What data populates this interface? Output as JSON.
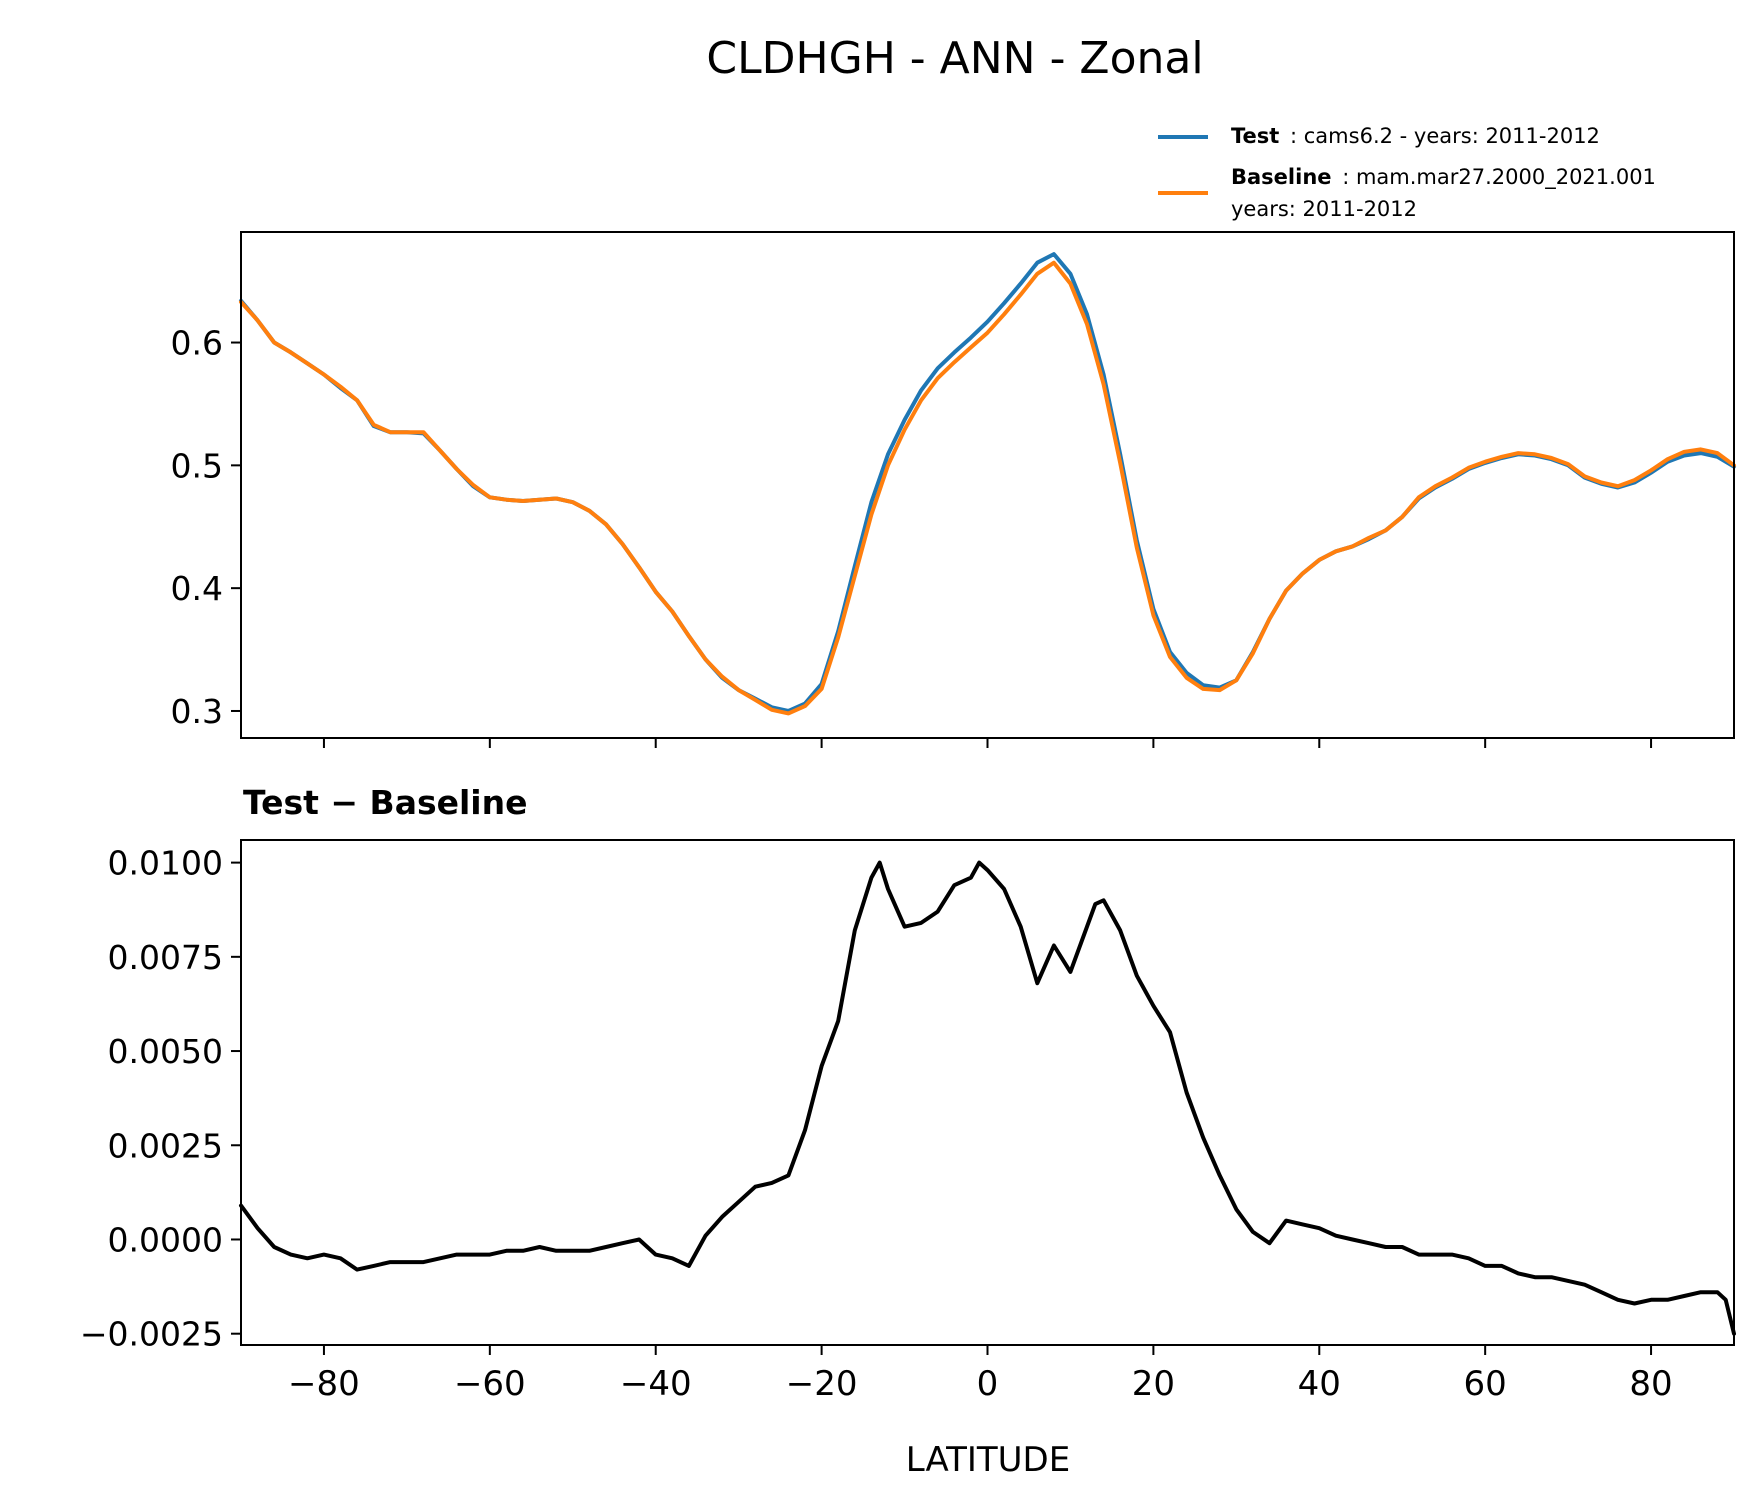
{
  "figure_title": "CLDHGH - ANN - Zonal",
  "legend": {
    "test_label": "Test",
    "test_desc": ": cams6.2 - years: 2011-2012",
    "baseline_label": "Baseline",
    "baseline_desc": ": mam.mar27.2000_2021.001",
    "baseline_desc2": "years: 2011-2012"
  },
  "colors": {
    "test": "#1f77b4",
    "baseline": "#ff7f0e",
    "diff": "#000000"
  },
  "chart_data": [
    {
      "type": "line",
      "title": "",
      "xlabel": "",
      "ylabel": "",
      "xlim": [
        -90,
        90
      ],
      "ylim": [
        0.278,
        0.69
      ],
      "x_ticks": [
        -80,
        -60,
        -40,
        -20,
        0,
        20,
        40,
        60,
        80
      ],
      "y_ticks": [
        0.3,
        0.4,
        0.5,
        0.6
      ],
      "y_tick_labels": [
        "0.3",
        "0.4",
        "0.5",
        "0.6"
      ],
      "x": [
        -90,
        -88,
        -86,
        -84,
        -82,
        -80,
        -78,
        -76,
        -74,
        -72,
        -70,
        -68,
        -66,
        -64,
        -62,
        -60,
        -58,
        -56,
        -54,
        -52,
        -50,
        -48,
        -46,
        -44,
        -42,
        -40,
        -38,
        -36,
        -34,
        -32,
        -30,
        -28,
        -26,
        -24,
        -22,
        -20,
        -18,
        -16,
        -14,
        -12,
        -10,
        -8,
        -6,
        -4,
        -2,
        0,
        2,
        4,
        6,
        8,
        10,
        12,
        14,
        16,
        18,
        20,
        22,
        24,
        26,
        28,
        30,
        32,
        34,
        36,
        38,
        40,
        42,
        44,
        46,
        48,
        50,
        52,
        54,
        56,
        58,
        60,
        62,
        64,
        66,
        68,
        70,
        72,
        74,
        76,
        78,
        80,
        82,
        84,
        86,
        88,
        90
      ],
      "series": [
        {
          "name": "Test",
          "values": [
            0.634,
            0.618,
            0.6,
            0.592,
            0.583,
            0.574,
            0.563,
            0.553,
            0.532,
            0.527,
            0.527,
            0.526,
            0.512,
            0.497,
            0.483,
            0.474,
            0.472,
            0.471,
            0.472,
            0.473,
            0.47,
            0.463,
            0.452,
            0.436,
            0.417,
            0.397,
            0.381,
            0.361,
            0.342,
            0.327,
            0.317,
            0.31,
            0.303,
            0.3,
            0.306,
            0.322,
            0.365,
            0.418,
            0.47,
            0.509,
            0.537,
            0.561,
            0.579,
            0.592,
            0.604,
            0.617,
            0.632,
            0.648,
            0.665,
            0.672,
            0.656,
            0.623,
            0.574,
            0.509,
            0.439,
            0.383,
            0.348,
            0.331,
            0.321,
            0.319,
            0.325,
            0.348,
            0.375,
            0.398,
            0.412,
            0.423,
            0.43,
            0.434,
            0.44,
            0.447,
            0.458,
            0.473,
            0.482,
            0.489,
            0.497,
            0.502,
            0.506,
            0.509,
            0.508,
            0.505,
            0.5,
            0.49,
            0.485,
            0.482,
            0.486,
            0.494,
            0.503,
            0.508,
            0.51,
            0.507,
            0.499
          ],
          "color": "#1f77b4"
        },
        {
          "name": "Baseline",
          "values": [
            0.633,
            0.618,
            0.6,
            0.592,
            0.583,
            0.574,
            0.564,
            0.553,
            0.533,
            0.527,
            0.527,
            0.527,
            0.512,
            0.497,
            0.484,
            0.474,
            0.472,
            0.471,
            0.472,
            0.473,
            0.47,
            0.463,
            0.452,
            0.436,
            0.417,
            0.397,
            0.381,
            0.361,
            0.342,
            0.328,
            0.317,
            0.309,
            0.301,
            0.298,
            0.304,
            0.318,
            0.36,
            0.41,
            0.46,
            0.5,
            0.529,
            0.553,
            0.571,
            0.584,
            0.596,
            0.608,
            0.623,
            0.639,
            0.656,
            0.665,
            0.648,
            0.615,
            0.566,
            0.502,
            0.433,
            0.378,
            0.344,
            0.327,
            0.318,
            0.317,
            0.325,
            0.347,
            0.375,
            0.398,
            0.412,
            0.423,
            0.43,
            0.434,
            0.441,
            0.447,
            0.458,
            0.474,
            0.483,
            0.49,
            0.498,
            0.503,
            0.507,
            0.51,
            0.509,
            0.506,
            0.501,
            0.491,
            0.486,
            0.483,
            0.488,
            0.496,
            0.505,
            0.511,
            0.513,
            0.51,
            0.5
          ],
          "color": "#ff7f0e"
        }
      ]
    },
    {
      "type": "line",
      "title": "Test − Baseline",
      "xlabel": "LATITUDE",
      "ylabel": "",
      "xlim": [
        -90,
        90
      ],
      "ylim": [
        -0.0028,
        0.0106
      ],
      "x_ticks": [
        -80,
        -60,
        -40,
        -20,
        0,
        20,
        40,
        60,
        80
      ],
      "x_tick_labels": [
        "−80",
        "−60",
        "−40",
        "−20",
        "0",
        "20",
        "40",
        "60",
        "80"
      ],
      "y_ticks": [
        -0.0025,
        0.0,
        0.0025,
        0.005,
        0.0075,
        0.01
      ],
      "y_tick_labels": [
        "−0.0025",
        "0.0000",
        "0.0025",
        "0.0050",
        "0.0075",
        "0.0100"
      ],
      "x": [
        -90,
        -88,
        -86,
        -84,
        -82,
        -80,
        -78,
        -76,
        -74,
        -72,
        -70,
        -68,
        -66,
        -64,
        -62,
        -60,
        -58,
        -56,
        -54,
        -52,
        -50,
        -48,
        -46,
        -44,
        -42,
        -40,
        -38,
        -36,
        -34,
        -32,
        -30,
        -28,
        -26,
        -24,
        -22,
        -20,
        -18,
        -16,
        -14,
        -13,
        -12,
        -10,
        -8,
        -6,
        -4,
        -2,
        -1,
        0,
        2,
        4,
        6,
        8,
        10,
        12,
        13,
        14,
        16,
        18,
        20,
        22,
        24,
        26,
        28,
        30,
        32,
        34,
        36,
        38,
        40,
        42,
        44,
        46,
        48,
        50,
        52,
        54,
        56,
        58,
        60,
        62,
        64,
        66,
        68,
        70,
        72,
        74,
        76,
        78,
        80,
        82,
        84,
        86,
        88,
        89,
        90
      ],
      "series": [
        {
          "name": "Test − Baseline",
          "values": [
            0.0009,
            0.0003,
            -0.0002,
            -0.0004,
            -0.0005,
            -0.0004,
            -0.0005,
            -0.0008,
            -0.0007,
            -0.0006,
            -0.0006,
            -0.0006,
            -0.0005,
            -0.0004,
            -0.0004,
            -0.0004,
            -0.0003,
            -0.0003,
            -0.0002,
            -0.0003,
            -0.0003,
            -0.0003,
            -0.0002,
            -0.0001,
            0.0,
            -0.0004,
            -0.0005,
            -0.0007,
            0.0001,
            0.0006,
            0.001,
            0.0014,
            0.0015,
            0.0017,
            0.0029,
            0.0046,
            0.0058,
            0.0082,
            0.0096,
            0.01,
            0.0093,
            0.0083,
            0.0084,
            0.0087,
            0.0094,
            0.0096,
            0.01,
            0.0098,
            0.0093,
            0.0083,
            0.0068,
            0.0078,
            0.0071,
            0.0083,
            0.0089,
            0.009,
            0.0082,
            0.007,
            0.0062,
            0.0055,
            0.0039,
            0.0027,
            0.0017,
            0.0008,
            0.0002,
            -0.0001,
            0.0005,
            0.0004,
            0.0003,
            0.0001,
            0.0,
            -0.0001,
            -0.0002,
            -0.0002,
            -0.0004,
            -0.0004,
            -0.0004,
            -0.0005,
            -0.0007,
            -0.0007,
            -0.0009,
            -0.001,
            -0.001,
            -0.0011,
            -0.0012,
            -0.0014,
            -0.0016,
            -0.0017,
            -0.0016,
            -0.0016,
            -0.0015,
            -0.0014,
            -0.0014,
            -0.0016,
            -0.0025
          ],
          "color": "#000000"
        }
      ]
    }
  ]
}
